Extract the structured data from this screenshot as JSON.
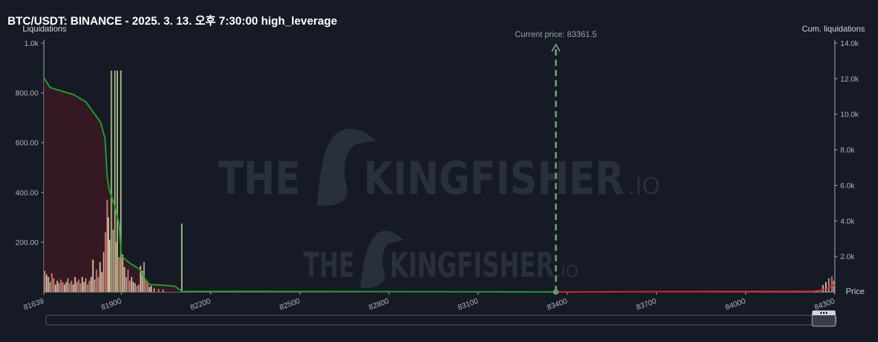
{
  "header": {
    "title": "BTC/USDT: BINANCE - 2025. 3. 13. 오후 7:30:00 high_leverage"
  },
  "chart_data": {
    "type": "bar",
    "title": "BTC/USDT: BINANCE - 2025. 3. 13. 오후 7:30:00 high_leverage",
    "ylabel_left": "Liquidations",
    "ylabel_right": "Cum. liquidations",
    "xlabel": "Price",
    "x_tick_labels": [
      "81639",
      "81900",
      "82200",
      "82500",
      "82800",
      "83100",
      "83400",
      "83700",
      "84000",
      "84300"
    ],
    "x_range": [
      81639,
      84300
    ],
    "y_left_ticks": [
      "1.0k",
      "800.00",
      "600.00",
      "400.00",
      "200.00"
    ],
    "y_left_range": [
      0,
      1000
    ],
    "y_right_ticks": [
      "14.0k",
      "12.0k",
      "10.0k",
      "8.0k",
      "6.0k",
      "4.0k",
      "2.0k"
    ],
    "y_right_range": [
      0,
      14000
    ],
    "current_price_label": "Current price: 83361.5",
    "current_price": 83361.5,
    "watermark": [
      "THE",
      "KINGFISHER",
      ".IO"
    ],
    "tall_bars": [
      {
        "price": 81866,
        "value": 890
      },
      {
        "price": 81878,
        "value": 890
      },
      {
        "price": 81886,
        "value": 890
      },
      {
        "price": 81898,
        "value": 890
      },
      {
        "price": 82103,
        "value": 275
      }
    ],
    "short_bars": [
      {
        "price": 81642,
        "value": 85
      },
      {
        "price": 81648,
        "value": 70
      },
      {
        "price": 81654,
        "value": 60
      },
      {
        "price": 81660,
        "value": 40
      },
      {
        "price": 81666,
        "value": 75
      },
      {
        "price": 81672,
        "value": 55
      },
      {
        "price": 81678,
        "value": 30
      },
      {
        "price": 81684,
        "value": 45
      },
      {
        "price": 81690,
        "value": 35
      },
      {
        "price": 81696,
        "value": 50
      },
      {
        "price": 81702,
        "value": 40
      },
      {
        "price": 81708,
        "value": 30
      },
      {
        "price": 81714,
        "value": 40
      },
      {
        "price": 81720,
        "value": 55
      },
      {
        "price": 81726,
        "value": 35
      },
      {
        "price": 81732,
        "value": 45
      },
      {
        "price": 81738,
        "value": 30
      },
      {
        "price": 81744,
        "value": 60
      },
      {
        "price": 81750,
        "value": 40
      },
      {
        "price": 81756,
        "value": 50
      },
      {
        "price": 81762,
        "value": 35
      },
      {
        "price": 81768,
        "value": 60
      },
      {
        "price": 81774,
        "value": 40
      },
      {
        "price": 81780,
        "value": 55
      },
      {
        "price": 81786,
        "value": 30
      },
      {
        "price": 81792,
        "value": 45
      },
      {
        "price": 81798,
        "value": 60
      },
      {
        "price": 81804,
        "value": 130
      },
      {
        "price": 81810,
        "value": 50
      },
      {
        "price": 81816,
        "value": 90
      },
      {
        "price": 81822,
        "value": 60
      },
      {
        "price": 81828,
        "value": 120
      },
      {
        "price": 81834,
        "value": 80
      },
      {
        "price": 81840,
        "value": 160
      },
      {
        "price": 81846,
        "value": 240
      },
      {
        "price": 81852,
        "value": 370
      },
      {
        "price": 81856,
        "value": 300
      },
      {
        "price": 81860,
        "value": 210
      },
      {
        "price": 81872,
        "value": 250
      },
      {
        "price": 81882,
        "value": 200
      },
      {
        "price": 81892,
        "value": 140
      },
      {
        "price": 81904,
        "value": 150
      },
      {
        "price": 81910,
        "value": 100
      },
      {
        "price": 81916,
        "value": 60
      },
      {
        "price": 81922,
        "value": 90
      },
      {
        "price": 81928,
        "value": 45
      },
      {
        "price": 81934,
        "value": 60
      },
      {
        "price": 81940,
        "value": 40
      },
      {
        "price": 81946,
        "value": 35
      },
      {
        "price": 81952,
        "value": 25
      },
      {
        "price": 81958,
        "value": 30
      },
      {
        "price": 81964,
        "value": 105
      },
      {
        "price": 81970,
        "value": 85
      },
      {
        "price": 81976,
        "value": 120
      },
      {
        "price": 81982,
        "value": 50
      },
      {
        "price": 81988,
        "value": 35
      },
      {
        "price": 81994,
        "value": 20
      },
      {
        "price": 82000,
        "value": 25
      },
      {
        "price": 82010,
        "value": 15
      },
      {
        "price": 82025,
        "value": 12
      },
      {
        "price": 82040,
        "value": 10
      },
      {
        "price": 84260,
        "value": 28
      },
      {
        "price": 84270,
        "value": 40
      },
      {
        "price": 84280,
        "value": 55
      },
      {
        "price": 84290,
        "value": 62
      },
      {
        "price": 84296,
        "value": 45
      }
    ],
    "cum_long_curve": [
      {
        "price": 81639,
        "value": 12050
      },
      {
        "price": 81660,
        "value": 11500
      },
      {
        "price": 81700,
        "value": 11300
      },
      {
        "price": 81740,
        "value": 11100
      },
      {
        "price": 81780,
        "value": 10700
      },
      {
        "price": 81810,
        "value": 10000
      },
      {
        "price": 81830,
        "value": 9550
      },
      {
        "price": 81845,
        "value": 8600
      },
      {
        "price": 81852,
        "value": 6500
      },
      {
        "price": 81858,
        "value": 5800
      },
      {
        "price": 81864,
        "value": 5500
      },
      {
        "price": 81878,
        "value": 4800
      },
      {
        "price": 81892,
        "value": 3800
      },
      {
        "price": 81900,
        "value": 2000
      },
      {
        "price": 81930,
        "value": 1600
      },
      {
        "price": 81960,
        "value": 1300
      },
      {
        "price": 81980,
        "value": 700
      },
      {
        "price": 81995,
        "value": 420
      },
      {
        "price": 82040,
        "value": 380
      },
      {
        "price": 82080,
        "value": 320
      },
      {
        "price": 82103,
        "value": 40
      },
      {
        "price": 83361.5,
        "value": 0
      }
    ],
    "cum_short_curve": [
      {
        "price": 83361.5,
        "value": 0
      },
      {
        "price": 84230,
        "value": 40
      },
      {
        "price": 84270,
        "value": 150
      },
      {
        "price": 84300,
        "value": 420
      }
    ],
    "colors": {
      "long_line": "#1ea32b",
      "short_line": "#e12525",
      "long_area": "#3a1a22",
      "tall_bar": "#a6ba86",
      "bar_mixed": [
        "#c18a7a",
        "#e0b2a0",
        "#d8c6a4",
        "#b29b8e",
        "#cc7a6a"
      ],
      "current_price_line": "#6b9a6b",
      "background": "#161a25"
    },
    "legend": "none",
    "grid": false
  }
}
